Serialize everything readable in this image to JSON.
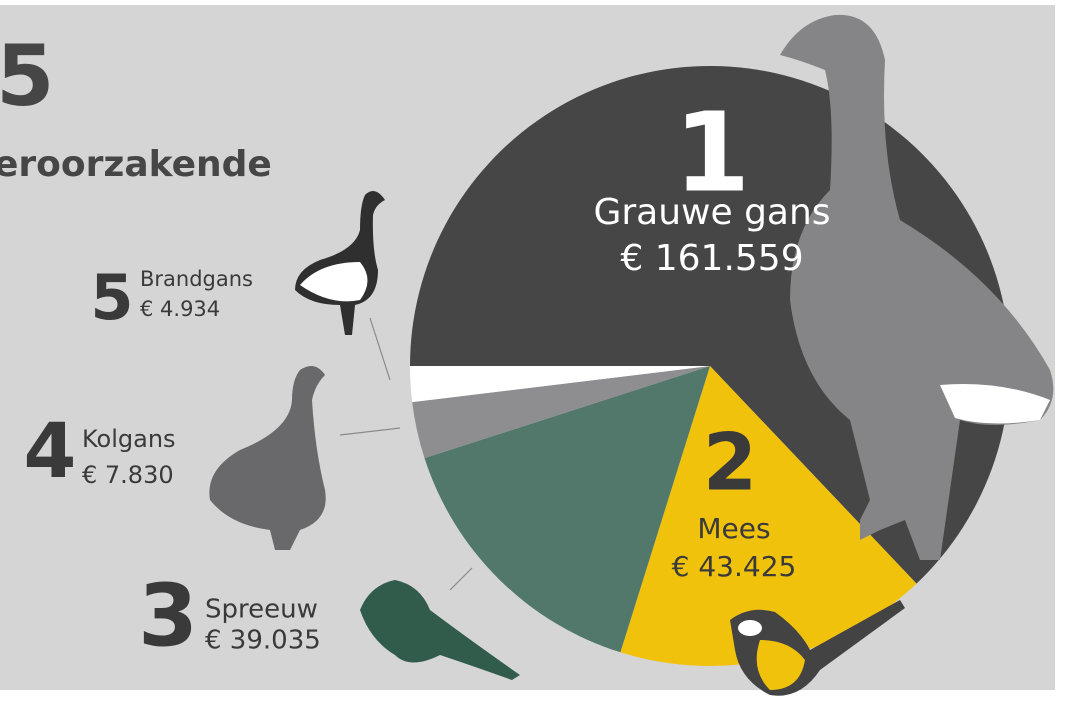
{
  "heading": {
    "number": "5",
    "text": "eroorzakende"
  },
  "chart_data": {
    "type": "pie",
    "categories": [
      "Grauwe gans",
      "Mees",
      "Spreeuw",
      "Kolgans",
      "Brandgans"
    ],
    "ranks": [
      "1",
      "2",
      "3",
      "4",
      "5"
    ],
    "values": [
      161559,
      43425,
      39035,
      7830,
      4934
    ],
    "value_labels": [
      "€ 161.559",
      "€ 43.425",
      "€ 39.035",
      "€ 7.830",
      "€ 4.934"
    ],
    "colors": [
      "#464646",
      "#f0c20c",
      "#52786c",
      "#8e8e90",
      "#ffffff"
    ]
  }
}
